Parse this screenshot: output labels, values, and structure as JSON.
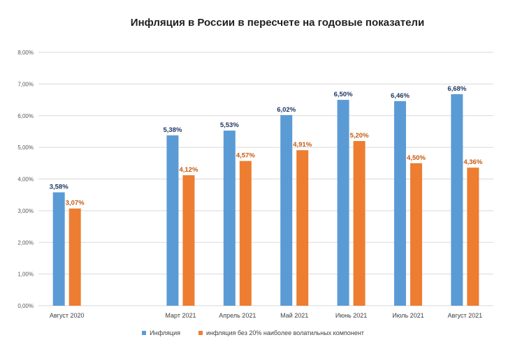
{
  "chart_data": {
    "type": "bar",
    "title": "Инфляция в России в пересчете на годовые показатели",
    "categories": [
      "Август 2020",
      "",
      "Март 2021",
      "Апрель 2021",
      "Май 2021",
      "Июнь 2021",
      "Июль 2021",
      "Август 2021"
    ],
    "series": [
      {
        "name": "Инфляция",
        "color": "#5b9bd5",
        "label_color": "#1f3864",
        "values": [
          3.58,
          null,
          5.38,
          5.53,
          6.02,
          6.5,
          6.46,
          6.68
        ],
        "labels": [
          "3,58%",
          "",
          "5,38%",
          "5,53%",
          "6,02%",
          "6,50%",
          "6,46%",
          "6,68%"
        ]
      },
      {
        "name": "инфляция без 20% наиболее волатильных компонент",
        "color": "#ed7d31",
        "label_color": "#c55a11",
        "values": [
          3.07,
          null,
          4.12,
          4.57,
          4.91,
          5.2,
          4.5,
          4.36
        ],
        "labels": [
          "3,07%",
          "",
          "4,12%",
          "4,57%",
          "4,91%",
          "5,20%",
          "4,50%",
          "4,36%"
        ]
      }
    ],
    "ylim": [
      0,
      8
    ],
    "yticks": [
      0,
      1,
      2,
      3,
      4,
      5,
      6,
      7,
      8
    ],
    "ytick_labels": [
      "0,00%",
      "1,00%",
      "2,00%",
      "3,00%",
      "4,00%",
      "5,00%",
      "6,00%",
      "7,00%",
      "8,00%"
    ],
    "xlabel": "",
    "ylabel": "",
    "grid": true,
    "legend": "bottom"
  }
}
